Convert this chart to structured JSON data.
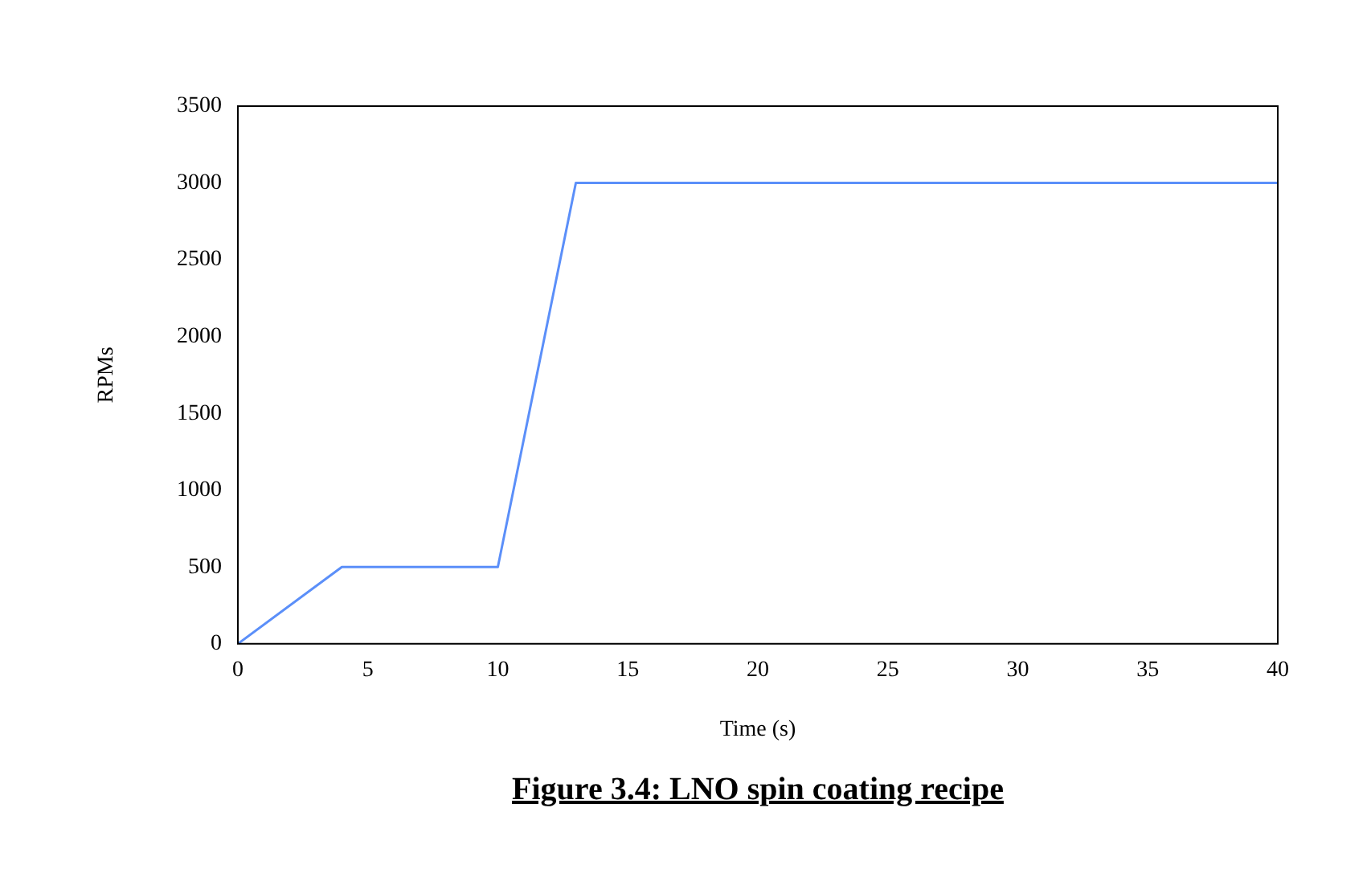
{
  "chart_data": {
    "type": "line",
    "title": "Figure 3.4: LNO spin coating recipe",
    "xlabel": "Time (s)",
    "ylabel": "RPMs",
    "x": [
      0,
      4,
      10,
      13,
      40
    ],
    "series": [
      {
        "color": "#5b8ff9",
        "values": [
          0,
          500,
          500,
          3000,
          3000
        ]
      }
    ],
    "xlim": [
      0,
      40
    ],
    "xticks": [
      0,
      5,
      10,
      15,
      20,
      25,
      30,
      35,
      40
    ],
    "ylim": [
      0,
      3500
    ],
    "yticks": [
      0,
      500,
      1000,
      1500,
      2000,
      2500,
      3000,
      3500
    ],
    "grid": false,
    "legend": false,
    "marker": "none",
    "line_style": "solid"
  }
}
